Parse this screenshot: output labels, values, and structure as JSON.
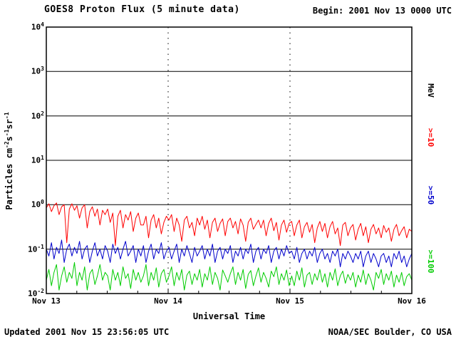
{
  "header": {
    "title": "GOES8 Proton Flux (5 minute data)",
    "begin": "Begin: 2001 Nov 13 0000 UTC"
  },
  "footer": {
    "updated": "Updated 2001 Nov 15 23:56:05 UTC",
    "source": "NOAA/SEC Boulder, CO USA"
  },
  "chart_data": {
    "type": "line",
    "title": "GOES8 Proton Flux (5 minute data)",
    "xlabel": "Universal Time",
    "ylabel_parts": [
      "Particles cm",
      "-2",
      "s",
      "-1",
      "sr",
      "-1"
    ],
    "unit_label": "MeV",
    "x_ticks": [
      "Nov 13",
      "Nov 14",
      "Nov 15",
      "Nov 16"
    ],
    "y_ticks": [
      {
        "base": "10",
        "exp": "4"
      },
      {
        "base": "10",
        "exp": "3"
      },
      {
        "base": "10",
        "exp": "2"
      },
      {
        "base": "10",
        "exp": "1"
      },
      {
        "base": "10",
        "exp": "0"
      },
      {
        "base": "10",
        "exp": "-1"
      },
      {
        "base": "10",
        "exp": "-2"
      }
    ],
    "xlim_days": [
      0,
      3
    ],
    "ylim": [
      0.01,
      10000
    ],
    "y_scale": "log",
    "grid": {
      "horizontal": "solid",
      "vertical": "dotted"
    },
    "legend_position": "right",
    "series": [
      {
        "name": ">=10",
        "unit": "MeV",
        "color": "#ff0000",
        "values": [
          0.85,
          1.05,
          0.7,
          0.95,
          1.1,
          0.6,
          0.9,
          1.0,
          0.14,
          0.8,
          1.05,
          0.75,
          0.95,
          0.5,
          0.85,
          1.0,
          0.3,
          0.7,
          0.9,
          0.55,
          0.8,
          0.35,
          0.75,
          0.6,
          0.8,
          0.4,
          0.65,
          0.12,
          0.55,
          0.75,
          0.3,
          0.6,
          0.45,
          0.7,
          0.25,
          0.5,
          0.65,
          0.35,
          0.35,
          0.55,
          0.18,
          0.45,
          0.6,
          0.3,
          0.5,
          0.22,
          0.4,
          0.55,
          0.45,
          0.6,
          0.25,
          0.5,
          0.35,
          0.15,
          0.45,
          0.55,
          0.3,
          0.4,
          0.2,
          0.5,
          0.35,
          0.55,
          0.28,
          0.45,
          0.18,
          0.4,
          0.5,
          0.25,
          0.38,
          0.48,
          0.2,
          0.42,
          0.5,
          0.3,
          0.42,
          0.22,
          0.48,
          0.35,
          0.15,
          0.4,
          0.5,
          0.28,
          0.36,
          0.45,
          0.3,
          0.45,
          0.2,
          0.38,
          0.5,
          0.26,
          0.4,
          0.16,
          0.35,
          0.45,
          0.24,
          0.38,
          0.42,
          0.2,
          0.35,
          0.45,
          0.18,
          0.32,
          0.4,
          0.24,
          0.36,
          0.14,
          0.3,
          0.42,
          0.25,
          0.38,
          0.18,
          0.32,
          0.42,
          0.22,
          0.3,
          0.12,
          0.35,
          0.4,
          0.2,
          0.3,
          0.36,
          0.16,
          0.28,
          0.38,
          0.2,
          0.32,
          0.14,
          0.28,
          0.36,
          0.22,
          0.3,
          0.18,
          0.34,
          0.24,
          0.3,
          0.15,
          0.28,
          0.36,
          0.2,
          0.26,
          0.32,
          0.18,
          0.28,
          0.25
        ]
      },
      {
        "name": ">=50",
        "unit": "MeV",
        "color": "#0000cc",
        "values": [
          0.1,
          0.07,
          0.14,
          0.06,
          0.11,
          0.08,
          0.16,
          0.05,
          0.1,
          0.13,
          0.07,
          0.11,
          0.08,
          0.15,
          0.06,
          0.1,
          0.12,
          0.05,
          0.09,
          0.14,
          0.07,
          0.1,
          0.06,
          0.12,
          0.09,
          0.05,
          0.13,
          0.08,
          0.11,
          0.06,
          0.1,
          0.15,
          0.07,
          0.09,
          0.12,
          0.05,
          0.1,
          0.07,
          0.12,
          0.05,
          0.09,
          0.13,
          0.06,
          0.1,
          0.08,
          0.14,
          0.06,
          0.09,
          0.11,
          0.06,
          0.09,
          0.13,
          0.05,
          0.1,
          0.07,
          0.12,
          0.08,
          0.05,
          0.11,
          0.07,
          0.09,
          0.12,
          0.06,
          0.1,
          0.07,
          0.13,
          0.05,
          0.09,
          0.11,
          0.06,
          0.1,
          0.08,
          0.12,
          0.05,
          0.09,
          0.07,
          0.11,
          0.06,
          0.1,
          0.08,
          0.13,
          0.05,
          0.09,
          0.11,
          0.06,
          0.1,
          0.08,
          0.12,
          0.05,
          0.09,
          0.11,
          0.06,
          0.1,
          0.07,
          0.12,
          0.08,
          0.09,
          0.06,
          0.11,
          0.05,
          0.08,
          0.1,
          0.06,
          0.09,
          0.07,
          0.11,
          0.05,
          0.08,
          0.1,
          0.06,
          0.08,
          0.05,
          0.09,
          0.07,
          0.1,
          0.04,
          0.08,
          0.06,
          0.09,
          0.07,
          0.05,
          0.08,
          0.06,
          0.09,
          0.04,
          0.07,
          0.09,
          0.05,
          0.08,
          0.06,
          0.04,
          0.07,
          0.08,
          0.05,
          0.07,
          0.04,
          0.08,
          0.06,
          0.09,
          0.05,
          0.07,
          0.04,
          0.06,
          0.08
        ]
      },
      {
        "name": ">=100",
        "unit": "MeV",
        "color": "#00cc00",
        "values": [
          0.02,
          0.035,
          0.015,
          0.03,
          0.045,
          0.012,
          0.025,
          0.04,
          0.018,
          0.03,
          0.022,
          0.05,
          0.015,
          0.03,
          0.02,
          0.04,
          0.012,
          0.028,
          0.035,
          0.016,
          0.025,
          0.045,
          0.02,
          0.03,
          0.025,
          0.012,
          0.035,
          0.02,
          0.03,
          0.015,
          0.04,
          0.022,
          0.028,
          0.013,
          0.035,
          0.02,
          0.03,
          0.018,
          0.025,
          0.045,
          0.015,
          0.03,
          0.02,
          0.038,
          0.014,
          0.028,
          0.035,
          0.018,
          0.025,
          0.04,
          0.015,
          0.03,
          0.02,
          0.035,
          0.012,
          0.026,
          0.032,
          0.016,
          0.028,
          0.02,
          0.035,
          0.014,
          0.028,
          0.02,
          0.04,
          0.016,
          0.03,
          0.022,
          0.012,
          0.034,
          0.025,
          0.018,
          0.028,
          0.04,
          0.016,
          0.03,
          0.02,
          0.035,
          0.013,
          0.027,
          0.033,
          0.015,
          0.025,
          0.038,
          0.018,
          0.03,
          0.022,
          0.014,
          0.032,
          0.024,
          0.04,
          0.016,
          0.028,
          0.02,
          0.034,
          0.015,
          0.025,
          0.015,
          0.032,
          0.02,
          0.038,
          0.014,
          0.026,
          0.03,
          0.016,
          0.028,
          0.02,
          0.035,
          0.018,
          0.028,
          0.014,
          0.03,
          0.02,
          0.036,
          0.015,
          0.025,
          0.032,
          0.017,
          0.027,
          0.02,
          0.03,
          0.014,
          0.026,
          0.018,
          0.034,
          0.016,
          0.028,
          0.02,
          0.012,
          0.03,
          0.022,
          0.035,
          0.016,
          0.028,
          0.02,
          0.032,
          0.014,
          0.026,
          0.018,
          0.03,
          0.015,
          0.024,
          0.028,
          0.02
        ]
      }
    ]
  }
}
